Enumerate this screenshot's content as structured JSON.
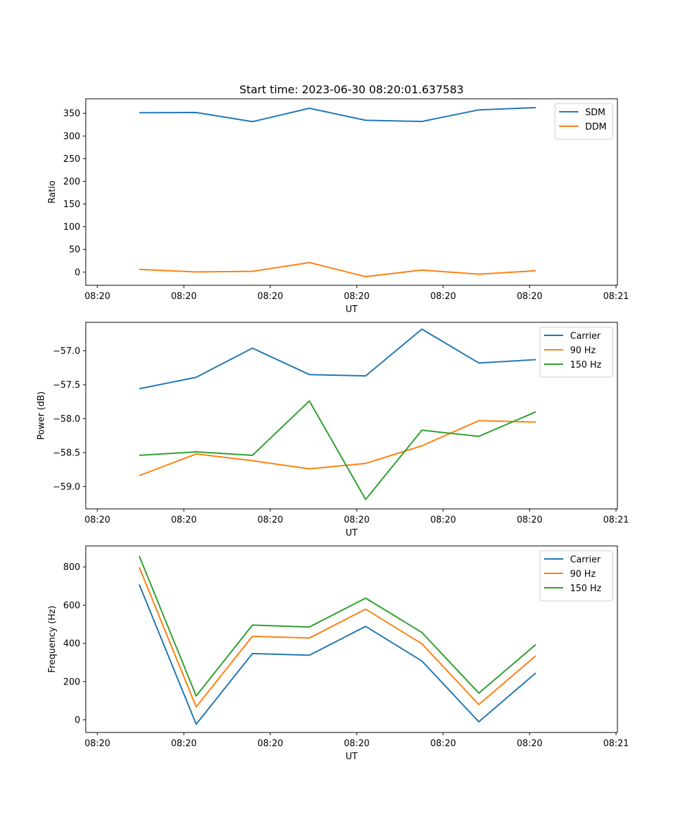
{
  "figure": {
    "title": "Start time: 2023-06-30 08:20:01.637583"
  },
  "chart_data": [
    {
      "type": "line",
      "xlabel": "UT",
      "ylabel": "Ratio",
      "x_tick_labels": [
        "08:20",
        "08:20",
        "08:20",
        "08:20",
        "08:20",
        "08:20",
        "08:20",
        "08:21"
      ],
      "y_ticks": [
        0,
        50,
        100,
        150,
        200,
        250,
        300,
        350
      ],
      "ylim": [
        -29,
        382
      ],
      "legend_position": "upper right",
      "grid": false,
      "series": [
        {
          "name": "SDM",
          "color": "#1f77b4",
          "values": [
            351.2,
            351.8,
            331.5,
            361.0,
            334.5,
            332.0,
            357.5,
            362.5
          ]
        },
        {
          "name": "DDM",
          "color": "#ff7f0e",
          "values": [
            6.0,
            0.5,
            1.8,
            21.0,
            -10.0,
            4.5,
            -4.5,
            3.0
          ]
        }
      ]
    },
    {
      "type": "line",
      "xlabel": "UT",
      "ylabel": "Power (dB)",
      "x_tick_labels": [
        "08:20",
        "08:20",
        "08:20",
        "08:20",
        "08:20",
        "08:20",
        "08:20",
        "08:21"
      ],
      "y_ticks": [
        -59.0,
        -58.5,
        -58.0,
        -57.5,
        -57.0
      ],
      "y_tick_labels": [
        "−59.0",
        "−58.5",
        "−58.0",
        "−57.5",
        "−57.0"
      ],
      "ylim": [
        -59.33,
        -56.58
      ],
      "legend_position": "upper right",
      "grid": false,
      "series": [
        {
          "name": "Carrier",
          "color": "#1f77b4",
          "values": [
            -57.56,
            -57.39,
            -56.96,
            -57.35,
            -57.37,
            -56.68,
            -57.18,
            -57.13
          ]
        },
        {
          "name": "90 Hz",
          "color": "#ff7f0e",
          "values": [
            -58.84,
            -58.52,
            -58.62,
            -58.74,
            -58.66,
            -58.4,
            -58.03,
            -58.05
          ]
        },
        {
          "name": "150 Hz",
          "color": "#2ca02c",
          "values": [
            -58.54,
            -58.49,
            -58.54,
            -57.74,
            -59.19,
            -58.17,
            -58.26,
            -57.9
          ]
        }
      ]
    },
    {
      "type": "line",
      "xlabel": "UT",
      "ylabel": "Frequency (Hz)",
      "x_tick_labels": [
        "08:20",
        "08:20",
        "08:20",
        "08:20",
        "08:20",
        "08:20",
        "08:20",
        "08:21"
      ],
      "y_ticks": [
        0,
        200,
        400,
        600,
        800
      ],
      "ylim": [
        -66,
        910
      ],
      "legend_position": "upper right",
      "grid": false,
      "series": [
        {
          "name": "Carrier",
          "color": "#1f77b4",
          "values": [
            708,
            -23,
            347,
            338,
            489,
            308,
            -10,
            245
          ]
        },
        {
          "name": "90 Hz",
          "color": "#ff7f0e",
          "values": [
            798,
            68,
            437,
            428,
            579,
            398,
            80,
            335
          ]
        },
        {
          "name": "150 Hz",
          "color": "#2ca02c",
          "values": [
            857,
            125,
            496,
            486,
            637,
            457,
            140,
            394
          ]
        }
      ]
    }
  ]
}
